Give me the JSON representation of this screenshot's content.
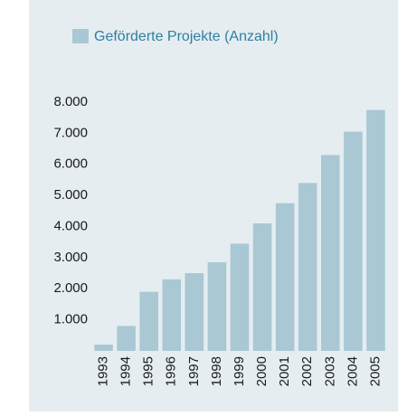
{
  "chart_data": {
    "type": "bar",
    "legend": "Geförderte Projekte (Anzahl)",
    "categories": [
      "1993",
      "1994",
      "1995",
      "1996",
      "1997",
      "1998",
      "1999",
      "2000",
      "2001",
      "2002",
      "2003",
      "2004",
      "2005"
    ],
    "values": [
      200,
      800,
      1900,
      2300,
      2500,
      2850,
      3450,
      4100,
      4750,
      5400,
      6300,
      7050,
      7750
    ],
    "color": "#a9c8d4",
    "ylim": [
      0,
      8000
    ],
    "yticks": [
      {
        "value": 1000,
        "label": "1.000"
      },
      {
        "value": 2000,
        "label": "2.000"
      },
      {
        "value": 3000,
        "label": "3.000"
      },
      {
        "value": 4000,
        "label": "4.000"
      },
      {
        "value": 5000,
        "label": "5.000"
      },
      {
        "value": 6000,
        "label": "6.000"
      },
      {
        "value": 7000,
        "label": "7.000"
      },
      {
        "value": 8000,
        "label": "8.000"
      }
    ],
    "grid": false
  }
}
